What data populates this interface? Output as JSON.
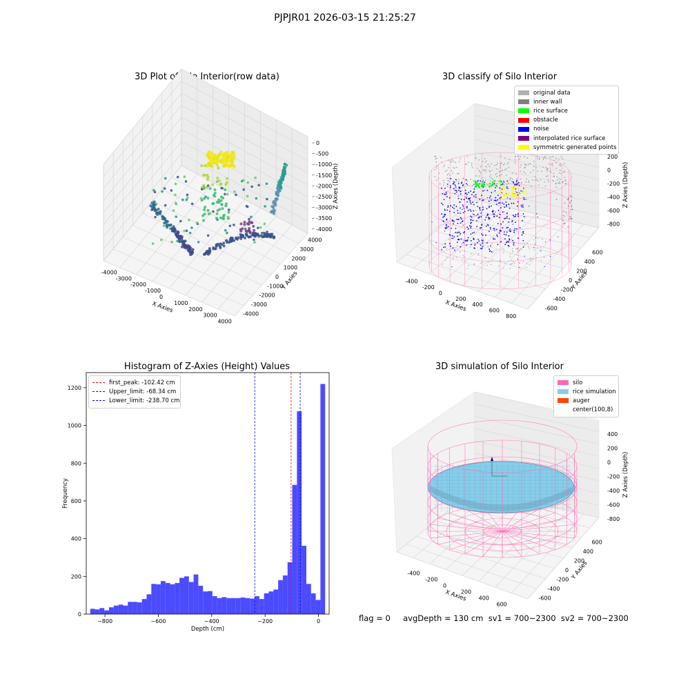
{
  "figure": {
    "suptitle": "PJPJR01 2026-03-15 21:25:27",
    "footer": "flag = 0     avgDepth = 130 cm  sv1 = 700~2300  sv2 = 700~2300"
  },
  "colors": {
    "pink": "#ff69b4",
    "rice_sim": "#87ceeb",
    "auger": "#ff4500",
    "hist_bar": "#4b4bff",
    "peak_line": "#ff0000",
    "limit_line": "#0000ff"
  },
  "panels": {
    "raw": {
      "title": "3D Plot of Silo Interior(row data)",
      "xlabel": "X Axies",
      "ylabel": "Y Axies",
      "zlabel": "Z Axies (Depth)",
      "xticks": [
        "-4000",
        "-3000",
        "-2000",
        "-1000",
        "0",
        "1000",
        "2000",
        "3000",
        "4000"
      ],
      "yticks": [
        "-4000",
        "-3000",
        "-2000",
        "-1000",
        "0",
        "1000",
        "2000",
        "3000",
        "4000"
      ],
      "zticks": [
        "0",
        "-500",
        "-1000",
        "-1500",
        "-2000",
        "-2500",
        "-3000",
        "-3500",
        "-4000"
      ]
    },
    "classify": {
      "title": "3D classify of Silo Interior",
      "xlabel": "X Axies",
      "ylabel": "Y Axies",
      "zlabel": "Z Axies (Depth)",
      "xticks": [
        "-400",
        "-200",
        "0",
        "200",
        "400",
        "600",
        "800"
      ],
      "yticks": [
        "-600",
        "-400",
        "-200",
        "0",
        "200",
        "400",
        "600"
      ],
      "zticks": [
        "200",
        "0",
        "-200",
        "-400",
        "-600",
        "-800"
      ],
      "legend": [
        {
          "label": "original data",
          "color": "#b0b0b0"
        },
        {
          "label": "inner wall",
          "color": "#808080"
        },
        {
          "label": "rice surface",
          "color": "#00ff00"
        },
        {
          "label": "obstacle",
          "color": "#ff0000"
        },
        {
          "label": "noise",
          "color": "#0000ff"
        },
        {
          "label": "interpolated rice surface",
          "color": "#800080"
        },
        {
          "label": "symmetric generated points",
          "color": "#ffff00"
        }
      ]
    },
    "simulation": {
      "title": "3D simulation of Silo Interior",
      "xlabel": "X Axies",
      "ylabel": "Y Axies",
      "zlabel": "Z Axies (Depth)",
      "xticks": [
        "-400",
        "-200",
        "0",
        "200",
        "400",
        "600"
      ],
      "yticks": [
        "-600",
        "-400",
        "-200",
        "0",
        "200",
        "400",
        "600"
      ],
      "zticks": [
        "400",
        "200",
        "0",
        "-200",
        "-400",
        "-600",
        "-800"
      ],
      "legend": [
        {
          "label": "silo",
          "color": "#ff69b4"
        },
        {
          "label": "rice simulation",
          "color": "#87ceeb"
        },
        {
          "label": "auger",
          "color": "#ff4500"
        },
        {
          "label": "center(100,8)",
          "color": ""
        }
      ]
    }
  },
  "chart_data": {
    "type": "bar",
    "title": "Histogram of Z-Axies (Height) Values",
    "xlabel": "Depth (cm)",
    "ylabel": "Frequency",
    "xlim": [
      -870,
      40
    ],
    "ylim": [
      0,
      1280
    ],
    "xticks": [
      -800,
      -600,
      -400,
      -200,
      0
    ],
    "yticks": [
      0,
      200,
      400,
      600,
      800,
      1000,
      1200
    ],
    "bin_start": -855,
    "bin_width": 17.6,
    "values": [
      28,
      25,
      32,
      20,
      36,
      45,
      50,
      45,
      65,
      65,
      62,
      80,
      105,
      160,
      158,
      175,
      165,
      158,
      165,
      192,
      200,
      170,
      210,
      150,
      120,
      122,
      95,
      85,
      90,
      85,
      85,
      85,
      88,
      85,
      82,
      95,
      80,
      110,
      120,
      130,
      180,
      205,
      275,
      685,
      1075,
      362,
      160,
      110,
      75,
      1220
    ],
    "vlines": [
      {
        "label": "first_peak: -102.42 cm",
        "x": -102.42,
        "color": "#ff0000"
      },
      {
        "label": "Upper_limit: -68.34 cm",
        "x": -68.34,
        "color": "#0000ff"
      },
      {
        "label": "Lower_limit: -238.70 cm",
        "x": -238.7,
        "color": "#0000ff"
      }
    ]
  }
}
